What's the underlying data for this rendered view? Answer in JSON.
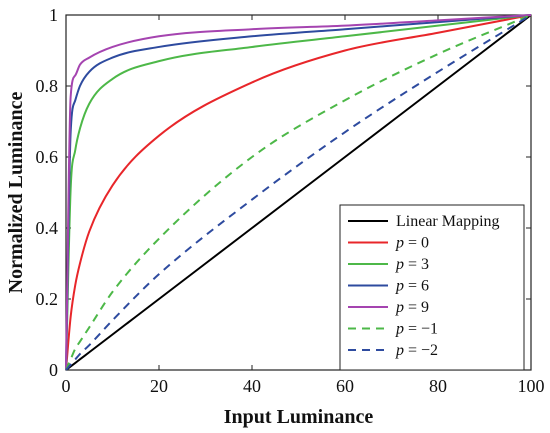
{
  "chart_data": {
    "type": "line",
    "xlabel": "Input Luminance",
    "ylabel": "Normalized Luminance",
    "xlim": [
      0,
      100
    ],
    "ylim": [
      0,
      1
    ],
    "xticks": [
      0,
      20,
      40,
      60,
      80,
      100
    ],
    "yticks": [
      0,
      0.2,
      0.4,
      0.6,
      0.8,
      1
    ],
    "xtick_labels": [
      "0",
      "20",
      "40",
      "60",
      "80",
      "100"
    ],
    "ytick_labels": [
      "0",
      "0.2",
      "0.4",
      "0.6",
      "0.8",
      "1"
    ],
    "grid": false,
    "legend_position": "bottom-right",
    "x": [
      0,
      1,
      2,
      3,
      5,
      10,
      20,
      40,
      60,
      80,
      100
    ],
    "series": [
      {
        "name": "Linear Mapping",
        "color": "#000000",
        "dash": "solid",
        "values": [
          0,
          0.01,
          0.02,
          0.03,
          0.05,
          0.1,
          0.2,
          0.4,
          0.6,
          0.8,
          1.0
        ]
      },
      {
        "name": "p = 0",
        "color": "#e8262a",
        "dash": "solid",
        "values": [
          0,
          0.15,
          0.24,
          0.3,
          0.39,
          0.52,
          0.66,
          0.81,
          0.9,
          0.95,
          1.0
        ]
      },
      {
        "name": "p = 3",
        "color": "#4db848",
        "dash": "solid",
        "values": [
          0,
          0.51,
          0.62,
          0.68,
          0.75,
          0.82,
          0.87,
          0.91,
          0.94,
          0.97,
          1.0
        ]
      },
      {
        "name": "p = 6",
        "color": "#2e4b9f",
        "dash": "solid",
        "values": [
          0,
          0.67,
          0.76,
          0.8,
          0.84,
          0.88,
          0.91,
          0.94,
          0.96,
          0.98,
          1.0
        ]
      },
      {
        "name": "p = 9",
        "color": "#a544b0",
        "dash": "solid",
        "values": [
          0,
          0.77,
          0.83,
          0.86,
          0.88,
          0.91,
          0.94,
          0.96,
          0.97,
          0.985,
          1.0
        ]
      },
      {
        "name": "p = −1",
        "color": "#4db848",
        "dash": "dashed",
        "values": [
          0,
          0.03,
          0.06,
          0.08,
          0.12,
          0.22,
          0.37,
          0.6,
          0.76,
          0.89,
          1.0
        ]
      },
      {
        "name": "p = −2",
        "color": "#2e4b9f",
        "dash": "dashed",
        "values": [
          0,
          0.015,
          0.03,
          0.045,
          0.07,
          0.14,
          0.27,
          0.48,
          0.67,
          0.84,
          1.0
        ]
      }
    ]
  }
}
